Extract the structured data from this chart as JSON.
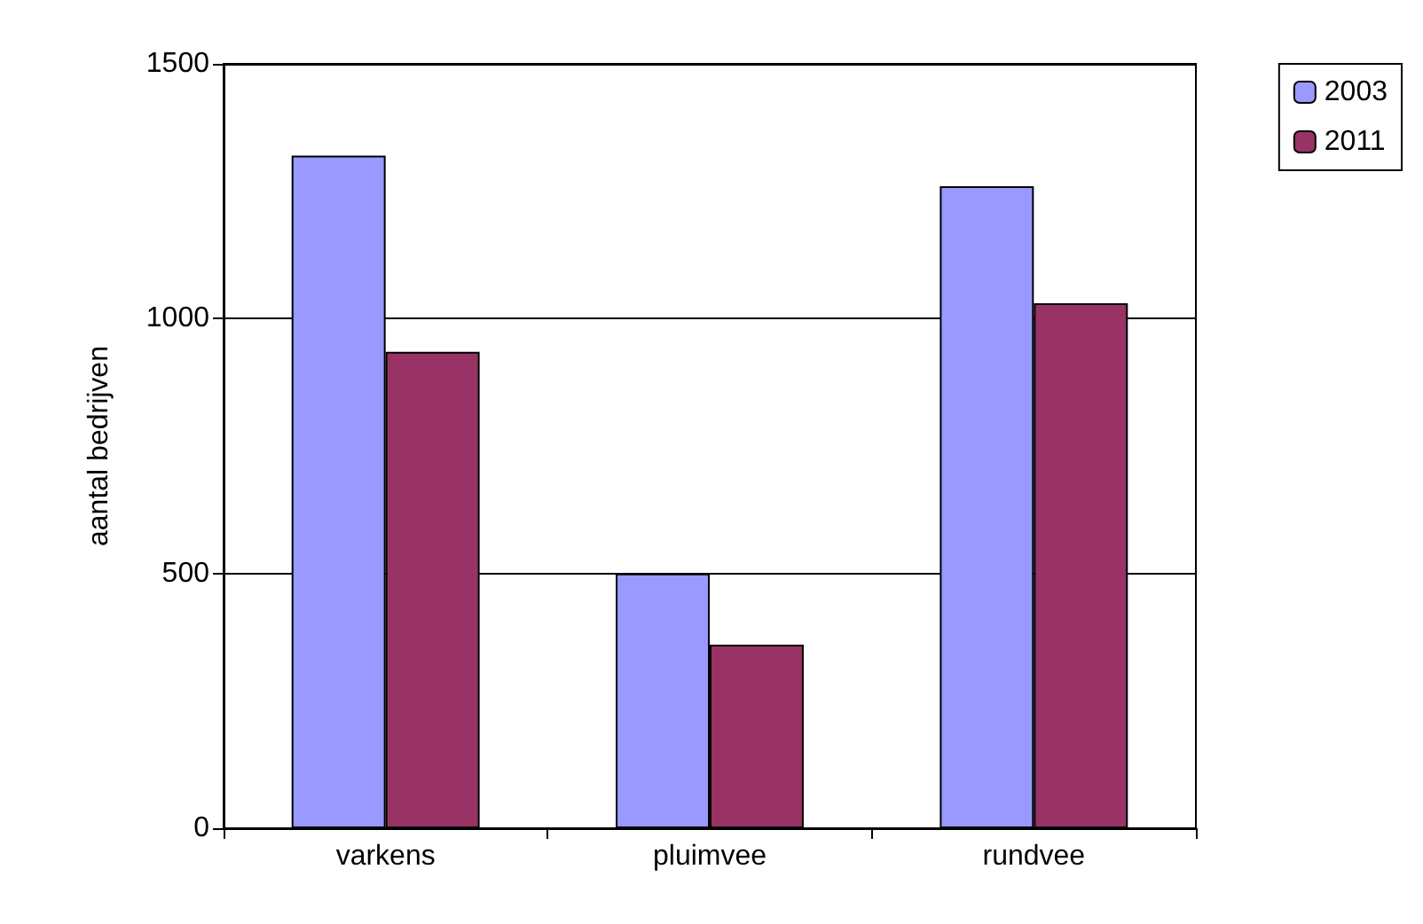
{
  "chart_data": {
    "type": "bar",
    "ylabel": "aantal bedrijven",
    "categories": [
      "varkens",
      "pluimvee",
      "rundvee"
    ],
    "series": [
      {
        "name": "2003",
        "color": "#9999ff",
        "values": [
          1320,
          500,
          1260
        ]
      },
      {
        "name": "2011",
        "color": "#993366",
        "values": [
          935,
          360,
          1030
        ]
      }
    ],
    "ylim": [
      0,
      1500
    ],
    "yticks": [
      0,
      500,
      1000,
      1500
    ],
    "grid": "y",
    "legend": "top right"
  }
}
